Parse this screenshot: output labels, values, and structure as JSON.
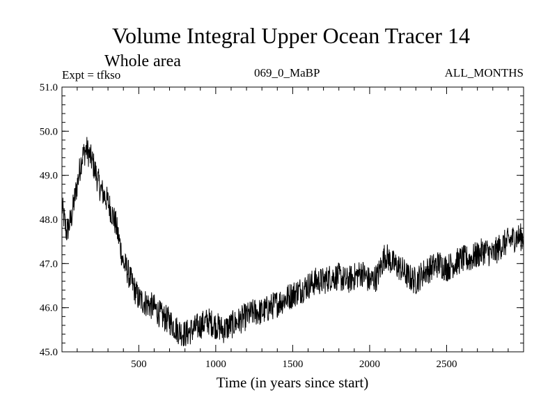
{
  "chart_data": {
    "type": "line",
    "title": "Volume Integral Upper Ocean Tracer 14",
    "subtitle": "Whole area",
    "expt_label": "Expt = tfkso",
    "center_label": "069_0_MaBP",
    "right_label": "ALL_MONTHS",
    "xlabel": "Time (in years since start)",
    "ylabel": "",
    "xlim": [
      1,
      3000
    ],
    "ylim": [
      45.0,
      51.0
    ],
    "x_ticks": [
      500,
      1000,
      1500,
      2000,
      2500
    ],
    "x_tick_labels": [
      "500",
      "1000",
      "1500",
      "2000",
      "2500"
    ],
    "y_ticks": [
      45.0,
      46.0,
      47.0,
      48.0,
      49.0,
      50.0,
      51.0
    ],
    "y_tick_labels": [
      "45.0",
      "46.0",
      "47.0",
      "48.0",
      "49.0",
      "50.0",
      "51.0"
    ],
    "grid": false,
    "series": [
      {
        "name": "Tracer 14",
        "color": "#000000",
        "x": [
          1,
          30,
          60,
          100,
          130,
          160,
          200,
          250,
          300,
          350,
          380,
          400,
          420,
          450,
          500,
          550,
          600,
          650,
          700,
          750,
          800,
          850,
          900,
          950,
          1000,
          1050,
          1100,
          1150,
          1200,
          1250,
          1300,
          1350,
          1400,
          1450,
          1500,
          1550,
          1600,
          1650,
          1700,
          1750,
          1800,
          1850,
          1900,
          1950,
          2000,
          2050,
          2100,
          2150,
          2200,
          2250,
          2300,
          2350,
          2400,
          2450,
          2500,
          2550,
          2600,
          2650,
          2700,
          2750,
          2800,
          2850,
          2900,
          2950,
          3000
        ],
        "values": [
          48.3,
          47.7,
          48.0,
          48.8,
          49.4,
          49.6,
          49.3,
          48.7,
          48.4,
          47.9,
          47.4,
          47.0,
          46.9,
          46.6,
          46.2,
          46.1,
          46.0,
          45.8,
          45.7,
          45.5,
          45.4,
          45.5,
          45.6,
          45.7,
          45.6,
          45.5,
          45.6,
          45.7,
          45.8,
          45.9,
          45.9,
          46.0,
          46.1,
          46.2,
          46.3,
          46.4,
          46.5,
          46.6,
          46.6,
          46.7,
          46.7,
          46.6,
          46.7,
          46.8,
          46.6,
          46.7,
          47.2,
          47.0,
          46.9,
          46.7,
          46.6,
          46.8,
          46.9,
          47.0,
          46.9,
          47.0,
          47.1,
          47.1,
          47.2,
          47.3,
          47.2,
          47.4,
          47.5,
          47.6,
          47.6
        ]
      }
    ]
  }
}
